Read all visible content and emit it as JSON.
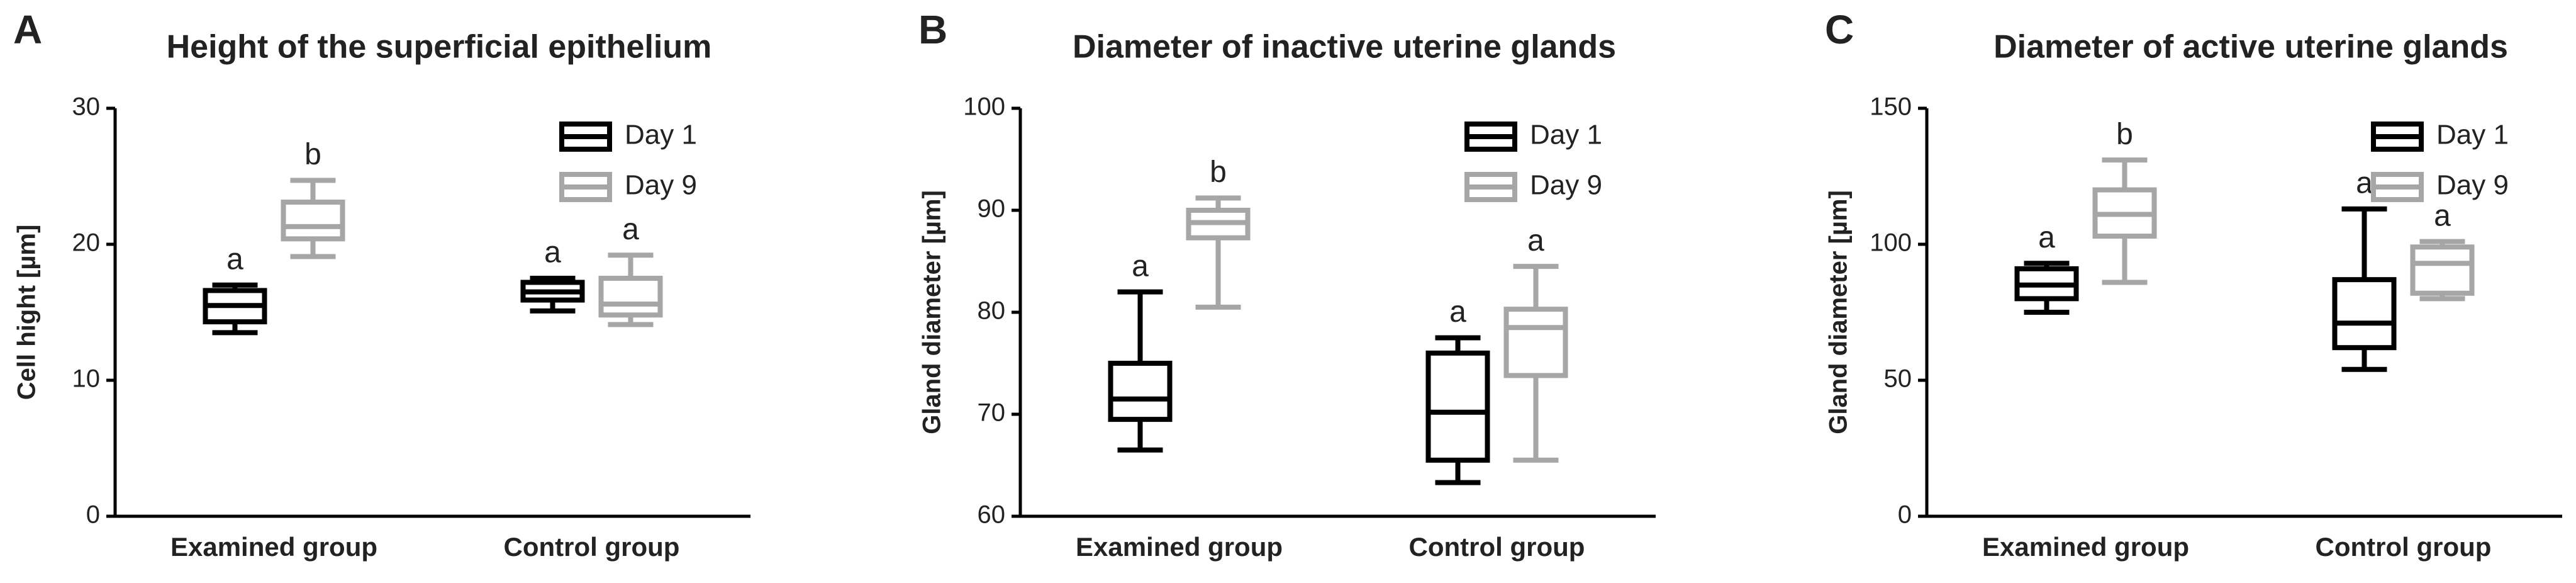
{
  "chart_data": [
    {
      "type": "box",
      "panel": "A",
      "title": "Height of the superficial epithelium",
      "y_label": "Cell hight [µm]",
      "categories": [
        "Examined group",
        "Control group"
      ],
      "series": [
        {
          "name": "Day 1",
          "color": "#000000",
          "values": [
            [
              13.5,
              14.3,
              15.5,
              16.6,
              17.0
            ],
            [
              15.1,
              15.9,
              16.5,
              17.2,
              17.5
            ]
          ],
          "labels": [
            "a",
            "a"
          ]
        },
        {
          "name": "Day 9",
          "color": "#a6a6a6",
          "values": [
            [
              19.1,
              20.4,
              21.3,
              23.1,
              24.7
            ],
            [
              14.1,
              14.8,
              15.6,
              17.5,
              19.2
            ]
          ],
          "labels": [
            "b",
            "a"
          ]
        }
      ],
      "ylim": [
        0,
        30
      ],
      "yticks": [
        0,
        10,
        20,
        30
      ],
      "legend": "upper right"
    },
    {
      "type": "box",
      "panel": "B",
      "title": "Diameter of inactive uterine glands",
      "y_label": "Gland diameter [µm]",
      "categories": [
        "Examined group",
        "Control group"
      ],
      "series": [
        {
          "name": "Day 1",
          "color": "#000000",
          "values": [
            [
              66.5,
              69.5,
              71.5,
              75.0,
              82.0
            ],
            [
              63.3,
              65.5,
              70.2,
              76.0,
              77.5
            ]
          ],
          "labels": [
            "a",
            "a"
          ]
        },
        {
          "name": "Day 9",
          "color": "#a6a6a6",
          "values": [
            [
              80.5,
              87.3,
              88.8,
              90.0,
              91.2
            ],
            [
              65.5,
              73.8,
              78.5,
              80.3,
              84.5
            ]
          ],
          "labels": [
            "b",
            "a"
          ]
        }
      ],
      "ylim": [
        60,
        100
      ],
      "yticks": [
        60,
        70,
        80,
        90,
        100
      ],
      "legend": "upper right"
    },
    {
      "type": "box",
      "panel": "C",
      "title": "Diameter of active uterine glands",
      "y_label": "Gland diameter [µm]",
      "categories": [
        "Examined group",
        "Control group"
      ],
      "series": [
        {
          "name": "Day 1",
          "color": "#000000",
          "values": [
            [
              75,
              80,
              85,
              91,
              93
            ],
            [
              54,
              62,
              71,
              87,
              113
            ]
          ],
          "labels": [
            "a",
            "a"
          ]
        },
        {
          "name": "Day 9",
          "color": "#a6a6a6",
          "values": [
            [
              86,
              103,
              111,
              120,
              131
            ],
            [
              80,
              82,
              93,
              99,
              101
            ]
          ],
          "labels": [
            "b",
            "a"
          ]
        }
      ],
      "ylim": [
        0,
        150
      ],
      "yticks": [
        0,
        50,
        100,
        150
      ],
      "legend": "upper right"
    }
  ]
}
